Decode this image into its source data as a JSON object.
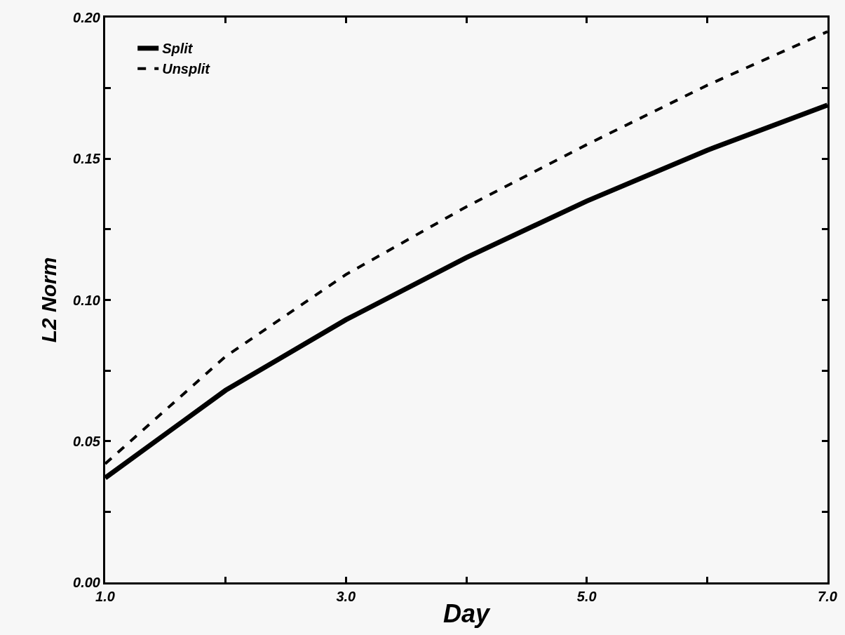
{
  "chart_data": {
    "type": "line",
    "xlabel": "Day",
    "ylabel": "L2 Norm",
    "x": [
      1,
      2,
      3,
      4,
      5,
      6,
      7
    ],
    "series": [
      {
        "name": "Split",
        "color": "#000000",
        "line_style": "solid",
        "values": [
          0.037,
          0.068,
          0.093,
          0.115,
          0.135,
          0.153,
          0.169
        ]
      },
      {
        "name": "Unsplit",
        "color": "#000000",
        "line_style": "dashed",
        "values": [
          0.042,
          0.08,
          0.109,
          0.133,
          0.155,
          0.176,
          0.195
        ]
      }
    ],
    "xlim": [
      1,
      7
    ],
    "xticks": [
      {
        "value": 1,
        "label": "1.0"
      },
      {
        "value": 2,
        "label": null
      },
      {
        "value": 3,
        "label": "3.0"
      },
      {
        "value": 4,
        "label": null
      },
      {
        "value": 5,
        "label": "5.0"
      },
      {
        "value": 6,
        "label": null
      },
      {
        "value": 7,
        "label": "7.0"
      }
    ],
    "ylim": [
      0,
      0.2
    ],
    "yticks": [
      {
        "value": 0,
        "label": "0.00"
      },
      {
        "value": 0.025,
        "label": null
      },
      {
        "value": 0.05,
        "label": "0.05"
      },
      {
        "value": 0.075,
        "label": null
      },
      {
        "value": 0.1,
        "label": "0.10"
      },
      {
        "value": 0.125,
        "label": null
      },
      {
        "value": 0.15,
        "label": "0.15"
      },
      {
        "value": 0.175,
        "label": null
      },
      {
        "value": 0.2,
        "label": "0.20"
      }
    ],
    "grid": false,
    "legend": "top left",
    "marker": "none"
  }
}
